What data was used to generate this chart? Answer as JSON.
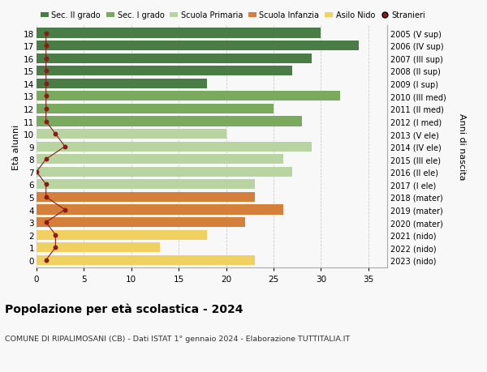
{
  "ages": [
    18,
    17,
    16,
    15,
    14,
    13,
    12,
    11,
    10,
    9,
    8,
    7,
    6,
    5,
    4,
    3,
    2,
    1,
    0
  ],
  "right_labels": [
    "2005 (V sup)",
    "2006 (IV sup)",
    "2007 (III sup)",
    "2008 (II sup)",
    "2009 (I sup)",
    "2010 (III med)",
    "2011 (II med)",
    "2012 (I med)",
    "2013 (V ele)",
    "2014 (IV ele)",
    "2015 (III ele)",
    "2016 (II ele)",
    "2017 (I ele)",
    "2018 (mater)",
    "2019 (mater)",
    "2020 (mater)",
    "2021 (nido)",
    "2022 (nido)",
    "2023 (nido)"
  ],
  "bar_values": [
    30,
    34,
    29,
    27,
    18,
    32,
    25,
    28,
    20,
    29,
    26,
    27,
    23,
    23,
    26,
    22,
    18,
    13,
    23
  ],
  "bar_colors": [
    "#4a7c45",
    "#4a7c45",
    "#4a7c45",
    "#4a7c45",
    "#4a7c45",
    "#7aaa5e",
    "#7aaa5e",
    "#7aaa5e",
    "#b8d4a0",
    "#b8d4a0",
    "#b8d4a0",
    "#b8d4a0",
    "#b8d4a0",
    "#d4803a",
    "#d4803a",
    "#d4803a",
    "#f0d060",
    "#f0d060",
    "#f0d060"
  ],
  "stranieri_values": [
    1,
    1,
    1,
    1,
    1,
    1,
    1,
    1,
    2,
    3,
    1,
    0,
    1,
    1,
    3,
    1,
    2,
    2,
    1
  ],
  "stranieri_color": "#8b1a1a",
  "legend_labels": [
    "Sec. II grado",
    "Sec. I grado",
    "Scuola Primaria",
    "Scuola Infanzia",
    "Asilo Nido",
    "Stranieri"
  ],
  "legend_colors": [
    "#4a7c45",
    "#7aaa5e",
    "#b8d4a0",
    "#d4803a",
    "#f0d060",
    "#8b1a1a"
  ],
  "title": "Popolazione per età scolastica - 2024",
  "subtitle": "COMUNE DI RIPALIMOSANI (CB) - Dati ISTAT 1° gennaio 2024 - Elaborazione TUTTITALIA.IT",
  "ylabel_left": "Età alunni",
  "ylabel_right": "Anni di nascita",
  "xlim": [
    0,
    37
  ],
  "background_color": "#f8f8f8",
  "grid_color": "#cccccc",
  "bar_height": 0.78
}
